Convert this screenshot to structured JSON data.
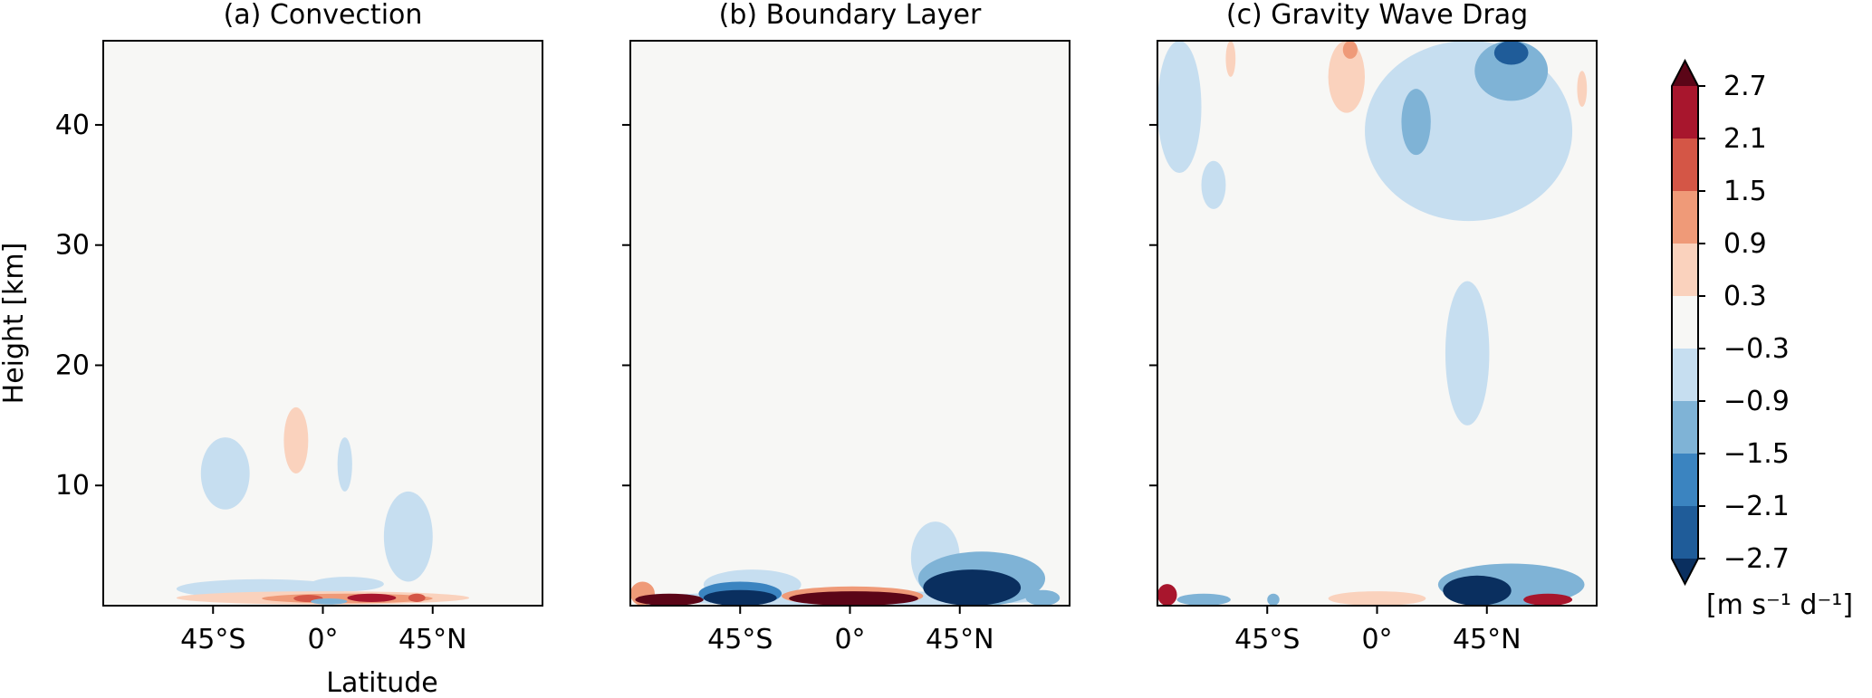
{
  "figure": {
    "colorbar": {
      "levels": [
        -2.7,
        -2.1,
        -1.5,
        -0.9,
        -0.3,
        0.3,
        0.9,
        1.5,
        2.1,
        2.7
      ],
      "tick_labels": [
        "2.7",
        "2.1",
        "1.5",
        "0.9",
        "0.3",
        "−0.3",
        "−0.9",
        "−1.5",
        "−2.1",
        "−2.7"
      ],
      "colors": [
        "#1f5c99",
        "#3b84c0",
        "#7fb3d6",
        "#c6def0",
        "#f7f7f5",
        "#fad2bd",
        "#ef9a78",
        "#d45646",
        "#a8162d"
      ],
      "extend_low_color": "#0a2f5f",
      "extend_high_color": "#5b0517",
      "units": "[m s⁻¹ d⁻¹]"
    }
  },
  "chart_data": [
    {
      "type": "heatmap",
      "panel": "a",
      "title": "(a) Convection",
      "xlabel": "Latitude",
      "ylabel": "Height [km]",
      "x_tick_labels": [
        "45°S",
        "0°",
        "45°N"
      ],
      "x_ticks": [
        -45,
        0,
        45
      ],
      "y_tick_labels": [
        "10",
        "20",
        "30",
        "40"
      ],
      "y_ticks": [
        10,
        20,
        30,
        40
      ],
      "xlim": [
        -90,
        90
      ],
      "ylim": [
        0,
        47
      ],
      "blobs": [
        {
          "x": [
            -50,
            -30
          ],
          "y": [
            8,
            14
          ],
          "value": -0.6
        },
        {
          "x": [
            -16,
            -6
          ],
          "y": [
            11,
            16.5
          ],
          "value": 0.6
        },
        {
          "x": [
            6,
            12
          ],
          "y": [
            9.5,
            14
          ],
          "value": -0.6
        },
        {
          "x": [
            25,
            45
          ],
          "y": [
            2,
            9.5
          ],
          "value": -0.6
        },
        {
          "x": [
            -60,
            10
          ],
          "y": [
            0.6,
            2.2
          ],
          "value": -0.6
        },
        {
          "x": [
            -5,
            25
          ],
          "y": [
            1.2,
            2.4
          ],
          "value": -0.6
        },
        {
          "x": [
            -60,
            60
          ],
          "y": [
            0.1,
            1.2
          ],
          "value": 0.6
        },
        {
          "x": [
            -25,
            45
          ],
          "y": [
            0.2,
            1.0
          ],
          "value": 1.2
        },
        {
          "x": [
            -12,
            0
          ],
          "y": [
            0.3,
            0.9
          ],
          "value": 1.8
        },
        {
          "x": [
            10,
            30
          ],
          "y": [
            0.3,
            1.0
          ],
          "value": 2.4
        },
        {
          "x": [
            -5,
            10
          ],
          "y": [
            0.1,
            0.6
          ],
          "value": -1.2
        },
        {
          "x": [
            35,
            42
          ],
          "y": [
            0.3,
            1.0
          ],
          "value": 1.8
        }
      ]
    },
    {
      "type": "heatmap",
      "panel": "b",
      "title": "(b) Boundary Layer",
      "xlabel": "",
      "ylabel": "",
      "x_tick_labels": [
        "45°S",
        "0°",
        "45°N"
      ],
      "x_ticks": [
        -45,
        0,
        45
      ],
      "y_tick_labels": [
        "",
        "",
        "",
        ""
      ],
      "y_ticks": [
        10,
        20,
        30,
        40
      ],
      "xlim": [
        -90,
        90
      ],
      "ylim": [
        0,
        47
      ],
      "blobs": [
        {
          "x": [
            -85,
            85
          ],
          "y": [
            0,
            1.2
          ],
          "value": -0.6
        },
        {
          "x": [
            -60,
            -20
          ],
          "y": [
            0.5,
            3.0
          ],
          "value": -0.6
        },
        {
          "x": [
            25,
            45
          ],
          "y": [
            1.0,
            7.0
          ],
          "value": -0.6
        },
        {
          "x": [
            -90,
            -80
          ],
          "y": [
            0,
            2.0
          ],
          "value": 1.2
        },
        {
          "x": [
            -88,
            -60
          ],
          "y": [
            0,
            1.0
          ],
          "value": 3.0
        },
        {
          "x": [
            -62,
            -28
          ],
          "y": [
            0,
            2.0
          ],
          "value": -1.8
        },
        {
          "x": [
            -60,
            -30
          ],
          "y": [
            0,
            1.3
          ],
          "value": -3.0
        },
        {
          "x": [
            -28,
            30
          ],
          "y": [
            0,
            1.6
          ],
          "value": 1.2
        },
        {
          "x": [
            -25,
            28
          ],
          "y": [
            0,
            1.2
          ],
          "value": 3.0
        },
        {
          "x": [
            28,
            80
          ],
          "y": [
            0,
            4.5
          ],
          "value": -1.2
        },
        {
          "x": [
            30,
            70
          ],
          "y": [
            0,
            3.0
          ],
          "value": -3.0
        },
        {
          "x": [
            72,
            86
          ],
          "y": [
            0,
            1.3
          ],
          "value": -1.2
        }
      ]
    },
    {
      "type": "heatmap",
      "panel": "c",
      "title": "(c) Gravity Wave Drag",
      "xlabel": "",
      "ylabel": "",
      "x_tick_labels": [
        "45°S",
        "0°",
        "45°N"
      ],
      "x_ticks": [
        -45,
        0,
        45
      ],
      "y_tick_labels": [
        "",
        "",
        "",
        ""
      ],
      "y_ticks": [
        10,
        20,
        30,
        40
      ],
      "xlim": [
        -90,
        90
      ],
      "ylim": [
        0,
        47
      ],
      "blobs": [
        {
          "x": [
            -90,
            -72
          ],
          "y": [
            36,
            47
          ],
          "value": -0.6
        },
        {
          "x": [
            -72,
            -62
          ],
          "y": [
            33,
            37
          ],
          "value": -0.6
        },
        {
          "x": [
            -62,
            -58
          ],
          "y": [
            44,
            47
          ],
          "value": 0.6
        },
        {
          "x": [
            -20,
            -5
          ],
          "y": [
            41,
            47
          ],
          "value": 0.6
        },
        {
          "x": [
            -14,
            -8
          ],
          "y": [
            45.5,
            47
          ],
          "value": 1.2
        },
        {
          "x": [
            -5,
            80
          ],
          "y": [
            32,
            47
          ],
          "value": -0.6
        },
        {
          "x": [
            10,
            22
          ],
          "y": [
            37.5,
            43
          ],
          "value": -1.2
        },
        {
          "x": [
            40,
            70
          ],
          "y": [
            42,
            47
          ],
          "value": -1.2
        },
        {
          "x": [
            48,
            62
          ],
          "y": [
            45,
            47
          ],
          "value": -2.4
        },
        {
          "x": [
            82,
            86
          ],
          "y": [
            41.5,
            44.5
          ],
          "value": 0.6
        },
        {
          "x": [
            28,
            46
          ],
          "y": [
            15,
            27
          ],
          "value": -0.6
        },
        {
          "x": [
            -20,
            20
          ],
          "y": [
            0,
            1.2
          ],
          "value": 0.6
        },
        {
          "x": [
            25,
            85
          ],
          "y": [
            0,
            3.5
          ],
          "value": -1.2
        },
        {
          "x": [
            27,
            55
          ],
          "y": [
            0,
            2.5
          ],
          "value": -3.0
        },
        {
          "x": [
            -90,
            -82
          ],
          "y": [
            0,
            1.8
          ],
          "value": 2.4
        },
        {
          "x": [
            -82,
            -60
          ],
          "y": [
            0,
            1.0
          ],
          "value": -1.2
        },
        {
          "x": [
            -45,
            -40
          ],
          "y": [
            0,
            1.0
          ],
          "value": -1.2
        },
        {
          "x": [
            60,
            80
          ],
          "y": [
            0,
            1.0
          ],
          "value": 2.4
        }
      ]
    }
  ]
}
